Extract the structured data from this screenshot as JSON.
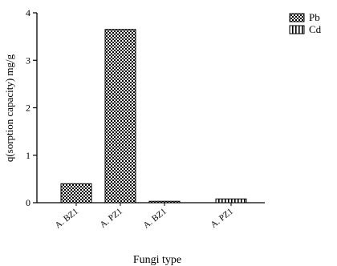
{
  "chart_data": {
    "type": "bar",
    "title": "",
    "xlabel": "Fungi type",
    "ylabel": "q(sorption capacity) mg/g",
    "ylim": [
      0,
      4
    ],
    "yticks": [
      0,
      1,
      2,
      3,
      4
    ],
    "grid": false,
    "legend_position": "top-right",
    "categories": [
      "A. BZ1",
      "A. PZ1",
      "A. BZ1",
      "A. PZ1"
    ],
    "series": [
      {
        "name": "Pb",
        "pattern": "checker",
        "values": [
          0.4,
          3.65,
          0.03,
          null
        ]
      },
      {
        "name": "Cd",
        "pattern": "vertical-stripes",
        "values": [
          null,
          null,
          null,
          0.08
        ]
      }
    ],
    "colors": {
      "fill": "#000000",
      "background": "#ffffff"
    }
  }
}
